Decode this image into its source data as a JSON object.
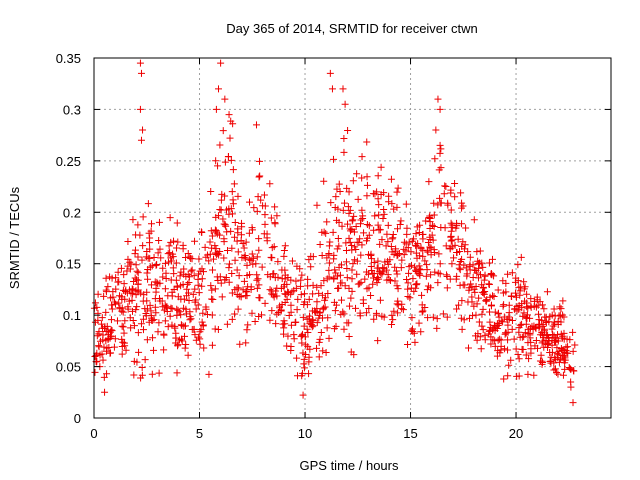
{
  "chart_data": {
    "type": "scatter",
    "title": "Day 365 of 2014, SRMTID for receiver ctwn",
    "xlabel": "GPS time / hours",
    "ylabel": "SRMTID / TECUs",
    "xlim": [
      0,
      24.5
    ],
    "ylim": [
      0,
      0.35
    ],
    "xticks": [
      0,
      5,
      10,
      15,
      20
    ],
    "xtick_labels": [
      "0",
      "5",
      "10",
      "15",
      "20"
    ],
    "yticks": [
      0,
      0.05,
      0.1,
      0.15,
      0.2,
      0.25,
      0.3,
      0.35
    ],
    "ytick_labels": [
      "0",
      "0.05",
      "0.1",
      "0.15",
      "0.2",
      "0.25",
      "0.3",
      "0.35"
    ],
    "grid": true,
    "marker": "+",
    "series": [
      {
        "name": "SRMTID",
        "color": "#ee0000",
        "envelope": {
          "x": [
            0,
            1,
            2,
            2.5,
            3,
            4,
            5,
            6,
            6.5,
            7,
            8,
            9,
            10,
            11,
            12,
            13,
            14,
            15,
            16,
            16.5,
            17,
            18,
            19,
            20,
            21,
            22,
            22.8
          ],
          "y_center": [
            0.08,
            0.1,
            0.12,
            0.13,
            0.12,
            0.12,
            0.11,
            0.16,
            0.2,
            0.14,
            0.16,
            0.12,
            0.08,
            0.14,
            0.17,
            0.17,
            0.15,
            0.14,
            0.16,
            0.19,
            0.17,
            0.13,
            0.1,
            0.1,
            0.09,
            0.07,
            0.06
          ],
          "y_spread": [
            0.03,
            0.04,
            0.05,
            0.06,
            0.05,
            0.05,
            0.04,
            0.07,
            0.07,
            0.05,
            0.06,
            0.04,
            0.04,
            0.06,
            0.06,
            0.06,
            0.05,
            0.05,
            0.05,
            0.06,
            0.05,
            0.04,
            0.03,
            0.04,
            0.03,
            0.03,
            0.02
          ]
        },
        "outliers": [
          {
            "x": 2.2,
            "y": 0.345
          },
          {
            "x": 2.25,
            "y": 0.335
          },
          {
            "x": 2.2,
            "y": 0.3
          },
          {
            "x": 2.3,
            "y": 0.28
          },
          {
            "x": 2.25,
            "y": 0.27
          },
          {
            "x": 6.0,
            "y": 0.345
          },
          {
            "x": 5.9,
            "y": 0.32
          },
          {
            "x": 6.2,
            "y": 0.31
          },
          {
            "x": 5.8,
            "y": 0.3
          },
          {
            "x": 6.4,
            "y": 0.295
          },
          {
            "x": 7.7,
            "y": 0.285
          },
          {
            "x": 11.2,
            "y": 0.335
          },
          {
            "x": 11.3,
            "y": 0.32
          },
          {
            "x": 11.8,
            "y": 0.32
          },
          {
            "x": 11.9,
            "y": 0.305
          },
          {
            "x": 16.3,
            "y": 0.31
          },
          {
            "x": 16.4,
            "y": 0.3
          },
          {
            "x": 16.2,
            "y": 0.28
          },
          {
            "x": 16.4,
            "y": 0.265
          },
          {
            "x": 22.7,
            "y": 0.015
          },
          {
            "x": 22.6,
            "y": 0.03
          },
          {
            "x": 0.5,
            "y": 0.025
          }
        ]
      }
    ]
  }
}
